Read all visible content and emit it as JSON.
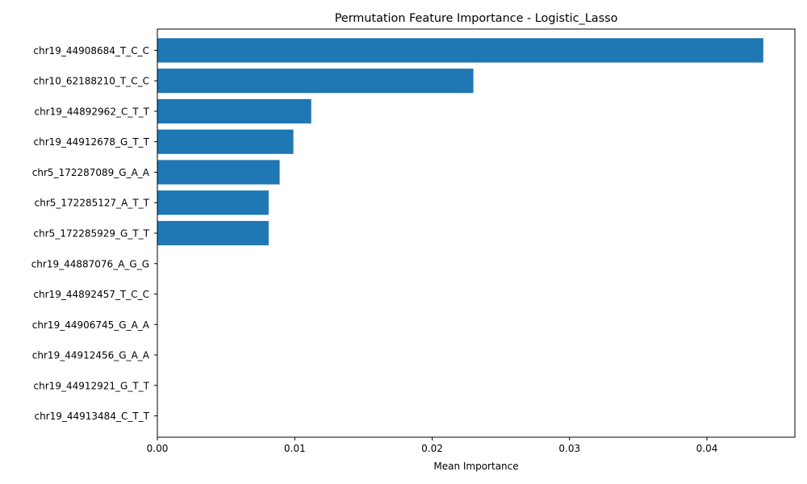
{
  "chart_data": {
    "type": "bar",
    "orientation": "horizontal",
    "title": "Permutation Feature Importance - Logistic_Lasso",
    "xlabel": "Mean Importance",
    "ylabel": "",
    "categories": [
      "chr19_44908684_T_C_C",
      "chr10_62188210_T_C_C",
      "chr19_44892962_C_T_T",
      "chr19_44912678_G_T_T",
      "chr5_172287089_G_A_A",
      "chr5_172285127_A_T_T",
      "chr5_172285929_G_T_T",
      "chr19_44887076_A_G_G",
      "chr19_44892457_T_C_C",
      "chr19_44906745_G_A_A",
      "chr19_44912456_G_A_A",
      "chr19_44912921_G_T_T",
      "chr19_44913484_C_T_T"
    ],
    "values": [
      0.0441,
      0.023,
      0.0112,
      0.0099,
      0.0089,
      0.0081,
      0.0081,
      0.0,
      0.0,
      0.0,
      0.0,
      0.0,
      0.0
    ],
    "xlim": [
      0.0,
      0.0464
    ],
    "xticks": [
      0.0,
      0.01,
      0.02,
      0.03,
      0.04
    ],
    "xtick_labels": [
      "0.00",
      "0.01",
      "0.02",
      "0.03",
      "0.04"
    ],
    "bar_color": "#1f77b4",
    "grid": false,
    "legend": "none"
  }
}
